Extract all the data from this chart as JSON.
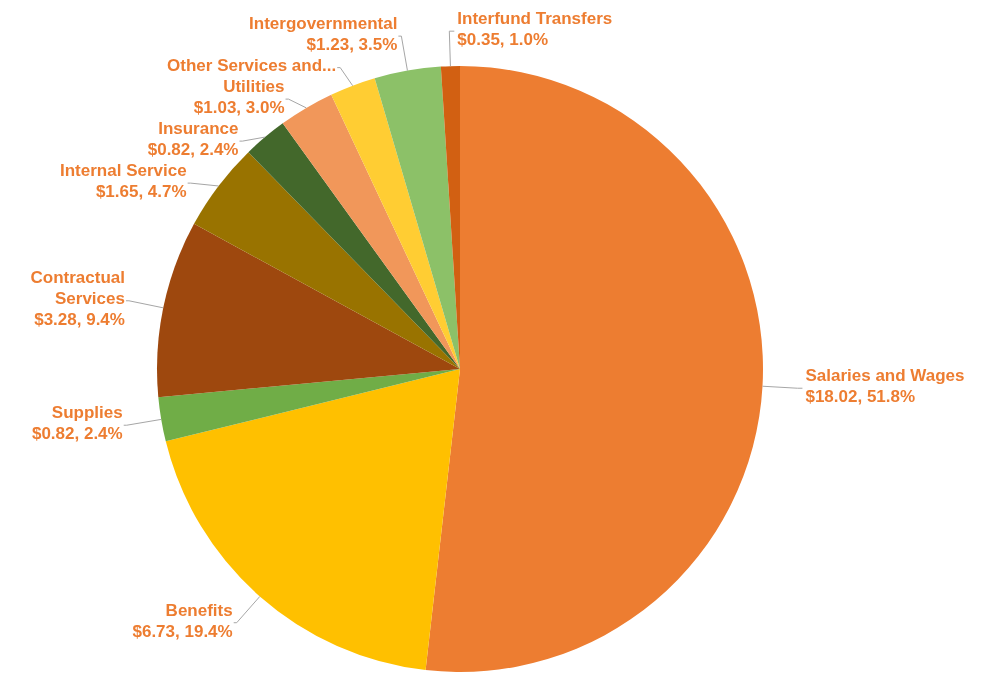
{
  "chart_data": {
    "type": "pie",
    "categories": [
      "Salaries and Wages",
      "Benefits",
      "Supplies",
      "Contractual Services",
      "Internal Service",
      "Insurance",
      "Utilities",
      "Other Services and...",
      "Intergovernmental",
      "Interfund Transfers"
    ],
    "values": [
      18.02,
      6.73,
      0.82,
      3.28,
      1.65,
      0.82,
      1.03,
      0.85,
      1.23,
      0.35
    ],
    "value_labels": [
      "$18.02, 51.8%",
      "$6.73, 19.4%",
      "$0.82, 2.4%",
      "$3.28, 9.4%",
      "$1.65, 4.7%",
      "$0.82, 2.4%",
      "$1.03, 3.0%",
      null,
      "$1.23, 3.5%",
      "$0.35, 1.0%"
    ],
    "colors": [
      "#ed7d31",
      "#ffc000",
      "#70ad47",
      "#9e480e",
      "#997300",
      "#43682b",
      "#f1975a",
      "#ffcd33",
      "#8cc168",
      "#d26012"
    ],
    "legend": false
  }
}
